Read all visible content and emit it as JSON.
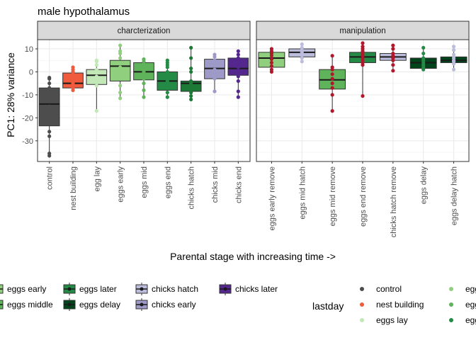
{
  "chart_data": {
    "type": "box",
    "title": "male hypothalamus",
    "xlabel": "Parental stage with increasing time ->",
    "ylabel": "PC1: 28% variance",
    "ylim": [
      -39,
      14
    ],
    "yticks": [
      10,
      0,
      -10,
      -20,
      -30
    ],
    "grid": true,
    "legend_position": "bottom",
    "panels": [
      {
        "name": "charcterization",
        "categories": [
          "control",
          "nest building",
          "egg lay",
          "eggs early",
          "eggs mid",
          "eggs end",
          "chicks hatch",
          "chicks mid",
          "chicks end"
        ],
        "boxes": [
          {
            "category": "control",
            "q1": -23.5,
            "median": -14.0,
            "q3": -7.0,
            "whisker_low": -36.5,
            "whisker_high": -3.0,
            "color": "#4d4d4d",
            "points": [
              -36.5,
              -35.5,
              -28,
              -26,
              -20,
              -15,
              -12,
              -9,
              -7,
              -5,
              -3,
              -2.5
            ]
          },
          {
            "category": "nest building",
            "q1": -7.0,
            "median": -5.0,
            "q3": -0.5,
            "whisker_low": -8.0,
            "whisker_high": 2.0,
            "color": "#ef5b3c",
            "points": [
              -8,
              -7,
              -6,
              -5,
              -4,
              -3,
              -1,
              0,
              1,
              2
            ]
          },
          {
            "category": "egg lay",
            "q1": -5.5,
            "median": -1.5,
            "q3": 1.0,
            "whisker_low": -17.0,
            "whisker_high": 5.0,
            "color": "#c2e8b8",
            "points": [
              -17,
              -6,
              -4,
              -2,
              0,
              1,
              3,
              4.5,
              5
            ]
          },
          {
            "category": "eggs early",
            "q1": -4.0,
            "median": 2.5,
            "q3": 5.0,
            "whisker_low": -11.5,
            "whisker_high": 11.5,
            "color": "#8fcf7e",
            "points": [
              -11.5,
              -9,
              -6,
              -3,
              0,
              2,
              4,
              6,
              8,
              9,
              11.5
            ]
          },
          {
            "category": "eggs mid",
            "q1": -3.5,
            "median": 0.0,
            "q3": 4.0,
            "whisker_low": -11.0,
            "whisker_high": 5.5,
            "color": "#5fb35a",
            "points": [
              -11,
              -8,
              -5,
              -3,
              -1,
              0,
              2,
              3,
              4.5,
              5.5
            ]
          },
          {
            "category": "eggs end",
            "q1": -8.0,
            "median": -4.0,
            "q3": 0.0,
            "whisker_low": -11.0,
            "whisker_high": 5.0,
            "color": "#238b45",
            "points": [
              -11,
              -9,
              -7,
              -5,
              -4,
              -2,
              0,
              2,
              3,
              4,
              5
            ]
          },
          {
            "category": "chicks hatch",
            "q1": -8.5,
            "median": -5.0,
            "q3": -4.0,
            "whisker_low": -12.0,
            "whisker_high": 10.5,
            "color": "#1c7a36",
            "points": [
              -12,
              -10.5,
              -9,
              -7,
              -5,
              -4,
              0,
              1.5,
              6,
              10.5
            ]
          },
          {
            "category": "chicks mid",
            "q1": -3.0,
            "median": 1.5,
            "q3": 5.5,
            "whisker_low": -8.5,
            "whisker_high": 7.5,
            "color": "#9e9ac8",
            "points": [
              -8.5,
              -3,
              -1,
              1,
              3,
              5,
              6.5,
              7.5
            ]
          },
          {
            "category": "chicks end",
            "q1": -1.5,
            "median": 1.5,
            "q3": 6.0,
            "whisker_low": -11.0,
            "whisker_high": 9.0,
            "color": "#54278f",
            "points": [
              -11,
              -8.5,
              -4,
              -2,
              0,
              2,
              4,
              6,
              7.5,
              9
            ]
          }
        ]
      },
      {
        "name": "manipulation",
        "categories": [
          "eggs early remove",
          "eggs mid hatch",
          "eggs mid remove",
          "eggs end remove",
          "chicks hatch remove",
          "eggs delay",
          "eggs delay hatch"
        ],
        "boxes": [
          {
            "category": "eggs early remove",
            "q1": 2.0,
            "median": 6.0,
            "q3": 8.5,
            "whisker_low": 0.0,
            "whisker_high": 10.0,
            "color": "#8fcf7e",
            "point_color": "#b2182b",
            "points": [
              0,
              1,
              2.5,
              4,
              5.5,
              7,
              8,
              9,
              10
            ]
          },
          {
            "category": "eggs mid hatch",
            "q1": 6.5,
            "median": 8.5,
            "q3": 10.0,
            "whisker_low": 4.5,
            "whisker_high": 12.0,
            "color": "#bcbddc",
            "point_color": "#bcbddc",
            "points": [
              4.5,
              6,
              7.5,
              8.5,
              9.5,
              10.5,
              12
            ]
          },
          {
            "category": "eggs mid remove",
            "q1": -7.5,
            "median": -3.5,
            "q3": 1.0,
            "whisker_low": -17.0,
            "whisker_high": 7.0,
            "color": "#5fb35a",
            "point_color": "#b2182b",
            "points": [
              -17,
              -10,
              -7,
              -5,
              -3,
              -1,
              1,
              2,
              7
            ]
          },
          {
            "category": "eggs end remove",
            "q1": 4.0,
            "median": 6.5,
            "q3": 8.5,
            "whisker_low": -10.5,
            "whisker_high": 12.5,
            "color": "#238b45",
            "point_color": "#b2182b",
            "points": [
              -10.5,
              3,
              4,
              5,
              6,
              7,
              8,
              9,
              10,
              11,
              12.5
            ]
          },
          {
            "category": "chicks hatch remove",
            "q1": 5.0,
            "median": 6.5,
            "q3": 8.0,
            "whisker_low": 0.5,
            "whisker_high": 11.5,
            "color": "#bcbddc",
            "point_color": "#b2182b",
            "points": [
              0.5,
              3,
              5,
              6,
              7,
              8,
              10,
              11.5
            ]
          },
          {
            "category": "eggs delay",
            "q1": 1.5,
            "median": 4.0,
            "q3": 6.0,
            "whisker_low": 1.0,
            "whisker_high": 10.5,
            "color": "#00441b",
            "point_color": "#238b45",
            "points": [
              1,
              2,
              3,
              4,
              5,
              6,
              8,
              10.5
            ]
          },
          {
            "category": "eggs delay hatch",
            "q1": 4.0,
            "median": 5.0,
            "q3": 6.5,
            "whisker_low": 1.0,
            "whisker_high": 11.0,
            "color": "#00441b",
            "point_color": "#bcbddc",
            "points": [
              1,
              3.5,
              4.5,
              5,
              6,
              7.5,
              9.5,
              11
            ]
          }
        ]
      }
    ],
    "legend_boxes": [
      {
        "label": "eggs early",
        "color": "#8fcf7e",
        "dot": false
      },
      {
        "label": "eggs middle",
        "color": "#5fb35a",
        "dot": false
      },
      {
        "label": "eggs later",
        "color": "#238b45",
        "dot": true
      },
      {
        "label": "eggs delay",
        "color": "#00441b",
        "dot": true
      },
      {
        "label": "chicks hatch",
        "color": "#bcbddc",
        "dot": true
      },
      {
        "label": "chicks early",
        "color": "#9e9ac8",
        "dot": true
      },
      {
        "label": "chicks later",
        "color": "#54278f",
        "dot": true
      }
    ],
    "legend_points_title": "lastday",
    "legend_points": [
      {
        "label": "control",
        "color": "#4d4d4d"
      },
      {
        "label": "nest building",
        "color": "#ef5b3c"
      },
      {
        "label": "eggs lay",
        "color": "#c2e8b8"
      },
      {
        "label": "egg",
        "color": "#8fcf7e"
      },
      {
        "label": "egg",
        "color": "#5fb35a"
      },
      {
        "label": "egg",
        "color": "#238b45"
      }
    ]
  }
}
